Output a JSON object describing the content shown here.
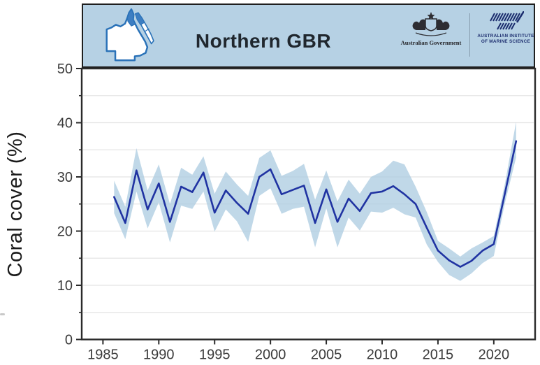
{
  "header": {
    "title": "Northern GBR",
    "map_icon": "queensland-map-northern-highlight",
    "gov_logo_text": "Australian Government",
    "aims_logo_line1": "AUSTRALIAN INSTITUTE",
    "aims_logo_line2": "OF MARINE SCIENCE"
  },
  "y_axis": {
    "label": "Coral cover (%)",
    "major_ticks": [
      0,
      10,
      20,
      30,
      40,
      50
    ],
    "minor_ticks": [
      5,
      15,
      25,
      35,
      45
    ],
    "gridlines": [
      5,
      10,
      15,
      20,
      25,
      30,
      35,
      40,
      45
    ]
  },
  "x_axis": {
    "tick_labels": [
      "1985",
      "1990",
      "1995",
      "2000",
      "2005",
      "2010",
      "2015",
      "2020"
    ]
  },
  "chart_data": {
    "type": "line",
    "title": "Northern GBR",
    "xlabel": "",
    "ylabel": "Coral cover (%)",
    "xlim": [
      1983.1,
      2023.7
    ],
    "ylim": [
      0,
      50
    ],
    "grid": "horizontal, every 5%",
    "legend": "none",
    "x": [
      1986,
      1987,
      1988,
      1989,
      1990,
      1991,
      1992,
      1993,
      1994,
      1995,
      1996,
      1997,
      1998,
      1999,
      2000,
      2001,
      2002,
      2003,
      2004,
      2005,
      2006,
      2007,
      2008,
      2009,
      2010,
      2011,
      2012,
      2013,
      2014,
      2015,
      2016,
      2017,
      2018,
      2019,
      2020,
      2021,
      2022
    ],
    "series": [
      {
        "name": "Mean hard coral cover (%)",
        "values": [
          26.3,
          21.5,
          31.2,
          24.0,
          28.8,
          21.7,
          28.2,
          27.2,
          30.8,
          23.4,
          27.5,
          25.2,
          23.2,
          30.0,
          31.4,
          26.8,
          27.6,
          28.4,
          21.5,
          27.7,
          21.7,
          26.0,
          23.7,
          27.0,
          27.3,
          28.3,
          26.8,
          25.0,
          20.6,
          16.4,
          14.6,
          13.4,
          14.5,
          16.4,
          17.6,
          27.0,
          36.6
        ]
      },
      {
        "name": "Confidence interval upper",
        "values": [
          29.3,
          24.5,
          35.3,
          27.5,
          32.3,
          25.0,
          31.7,
          30.4,
          33.8,
          26.9,
          31.0,
          28.6,
          26.5,
          33.5,
          34.9,
          30.2,
          31.1,
          32.4,
          25.8,
          31.2,
          25.5,
          29.5,
          26.9,
          30.0,
          31.0,
          33.0,
          32.3,
          28.2,
          23.5,
          18.2,
          16.8,
          15.3,
          16.8,
          17.9,
          19.1,
          28.8,
          40.2
        ]
      },
      {
        "name": "Confidence interval lower",
        "values": [
          23.3,
          18.5,
          27.3,
          20.5,
          25.3,
          17.9,
          24.7,
          24.1,
          27.3,
          19.9,
          24.0,
          21.8,
          18.0,
          26.5,
          27.9,
          23.2,
          24.1,
          24.5,
          17.0,
          24.2,
          17.0,
          22.5,
          20.1,
          23.6,
          23.4,
          24.3,
          23.1,
          22.5,
          17.5,
          14.3,
          11.9,
          10.8,
          12.2,
          14.1,
          15.4,
          25.2,
          33.6
        ]
      }
    ]
  },
  "colors": {
    "header_bg": "#b6d1e4",
    "border": "#1f1f1f",
    "axis": "#2b2b2b",
    "grid": "#e4e4e4",
    "tick_text": "#3a3a3a",
    "line": "#2033a2",
    "band": "#aecde2",
    "map_outline": "#2a72b8",
    "map_highlight": "#3d7ec2",
    "logo_navy": "#1c2d6e",
    "crest_dark": "#2d2d32"
  }
}
